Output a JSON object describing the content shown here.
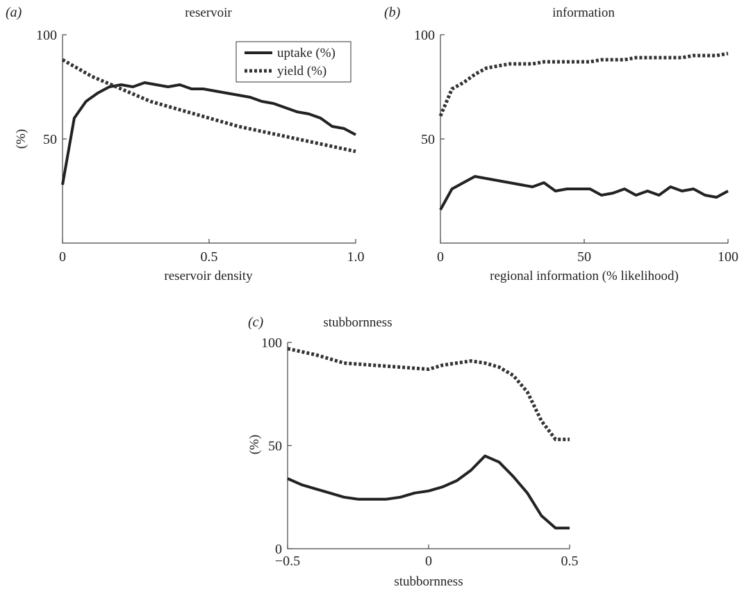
{
  "chart_data": [
    {
      "type": "line",
      "panel_label": "(a)",
      "title": "reservoir",
      "xlabel": "reservoir density",
      "ylabel": "(%)",
      "xlim": [
        0,
        1.0
      ],
      "ylim": [
        0,
        100
      ],
      "xticks": [
        {
          "v": 0,
          "t": "0"
        },
        {
          "v": 0.5,
          "t": "0.5"
        },
        {
          "v": 1.0,
          "t": "1.0"
        }
      ],
      "yticks": [
        {
          "v": 50,
          "t": "50"
        },
        {
          "v": 100,
          "t": "100"
        }
      ],
      "legend": {
        "position": "top-right",
        "items": [
          {
            "label": "uptake (%)",
            "style": "solid"
          },
          {
            "label": "yield (%)",
            "style": "dashed"
          }
        ]
      },
      "series": [
        {
          "name": "uptake (%)",
          "style": "solid",
          "x": [
            0,
            0.04,
            0.08,
            0.12,
            0.16,
            0.2,
            0.24,
            0.28,
            0.32,
            0.36,
            0.4,
            0.44,
            0.48,
            0.52,
            0.56,
            0.6,
            0.64,
            0.68,
            0.72,
            0.76,
            0.8,
            0.84,
            0.88,
            0.92,
            0.96,
            1.0
          ],
          "y": [
            28,
            60,
            68,
            72,
            75,
            76,
            75,
            77,
            76,
            75,
            76,
            74,
            74,
            73,
            72,
            71,
            70,
            68,
            67,
            65,
            63,
            62,
            60,
            56,
            55,
            52
          ]
        },
        {
          "name": "yield (%)",
          "style": "dashed",
          "x": [
            0,
            0.1,
            0.2,
            0.3,
            0.4,
            0.5,
            0.6,
            0.7,
            0.8,
            0.9,
            1.0
          ],
          "y": [
            88,
            80,
            74,
            68,
            64,
            60,
            56,
            53,
            50,
            47,
            44
          ]
        }
      ]
    },
    {
      "type": "line",
      "panel_label": "(b)",
      "title": "information",
      "xlabel": "regional information (% likelihood)",
      "ylabel": "",
      "xlim": [
        0,
        100
      ],
      "ylim": [
        0,
        100
      ],
      "xticks": [
        {
          "v": 0,
          "t": "0"
        },
        {
          "v": 50,
          "t": "50"
        },
        {
          "v": 100,
          "t": "100"
        }
      ],
      "yticks": [
        {
          "v": 50,
          "t": "50"
        },
        {
          "v": 100,
          "t": "100"
        }
      ],
      "series": [
        {
          "name": "uptake (%)",
          "style": "solid",
          "x": [
            0,
            4,
            8,
            12,
            16,
            20,
            24,
            28,
            32,
            36,
            40,
            44,
            48,
            52,
            56,
            60,
            64,
            68,
            72,
            76,
            80,
            84,
            88,
            92,
            96,
            100
          ],
          "y": [
            16,
            26,
            29,
            32,
            31,
            30,
            29,
            28,
            27,
            29,
            25,
            26,
            26,
            26,
            23,
            24,
            26,
            23,
            25,
            23,
            27,
            25,
            26,
            23,
            22,
            25
          ]
        },
        {
          "name": "yield (%)",
          "style": "dashed",
          "x": [
            0,
            4,
            8,
            12,
            16,
            20,
            24,
            28,
            32,
            36,
            40,
            44,
            48,
            52,
            56,
            60,
            64,
            68,
            72,
            76,
            80,
            84,
            88,
            92,
            96,
            100
          ],
          "y": [
            61,
            74,
            77,
            81,
            84,
            85,
            86,
            86,
            86,
            87,
            87,
            87,
            87,
            87,
            88,
            88,
            88,
            89,
            89,
            89,
            89,
            89,
            90,
            90,
            90,
            91
          ]
        }
      ]
    },
    {
      "type": "line",
      "panel_label": "(c)",
      "title": "stubbornness",
      "xlabel": "stubbornness",
      "ylabel": "(%)",
      "xlim": [
        -0.5,
        0.5
      ],
      "ylim": [
        0,
        100
      ],
      "xticks": [
        {
          "v": -0.5,
          "t": "−0.5"
        },
        {
          "v": 0,
          "t": "0"
        },
        {
          "v": 0.5,
          "t": "0.5"
        }
      ],
      "yticks": [
        {
          "v": 0,
          "t": "0"
        },
        {
          "v": 50,
          "t": "50"
        },
        {
          "v": 100,
          "t": "100"
        }
      ],
      "series": [
        {
          "name": "uptake (%)",
          "style": "solid",
          "x": [
            -0.5,
            -0.45,
            -0.4,
            -0.35,
            -0.3,
            -0.25,
            -0.2,
            -0.15,
            -0.1,
            -0.05,
            0,
            0.05,
            0.1,
            0.15,
            0.2,
            0.25,
            0.3,
            0.35,
            0.4,
            0.45,
            0.5
          ],
          "y": [
            34,
            31,
            29,
            27,
            25,
            24,
            24,
            24,
            25,
            27,
            28,
            30,
            33,
            38,
            45,
            42,
            35,
            27,
            16,
            10,
            10
          ]
        },
        {
          "name": "yield (%)",
          "style": "dashed",
          "x": [
            -0.5,
            -0.4,
            -0.3,
            -0.2,
            -0.1,
            0,
            0.05,
            0.1,
            0.15,
            0.2,
            0.25,
            0.3,
            0.35,
            0.4,
            0.45,
            0.5
          ],
          "y": [
            97,
            94,
            90,
            89,
            88,
            87,
            89,
            90,
            91,
            90,
            88,
            84,
            76,
            62,
            53,
            53
          ]
        }
      ]
    }
  ]
}
